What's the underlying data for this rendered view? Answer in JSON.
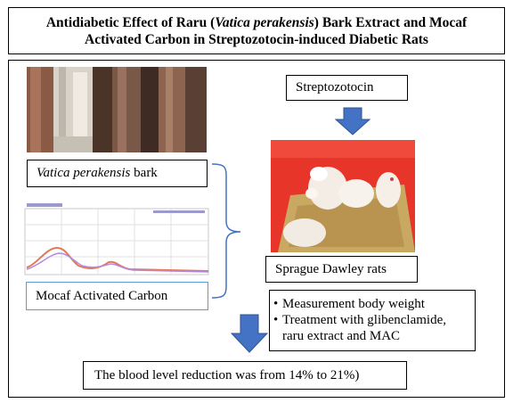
{
  "title": {
    "line1_prefix": "Antidiabetic Effect of Raru (",
    "line1_italic": "Vatica perakensis",
    "line1_suffix": ") Bark Extract and Mocaf",
    "line2": "Activated Carbon in Streptozotocin-induced Diabetic Rats"
  },
  "bark": {
    "italic": "Vatica perakensis",
    "suffix": " bark"
  },
  "mocaf_label": "Mocaf Activated Carbon",
  "streptozotocin_label": "Streptozotocin",
  "rats_label": "Sprague Dawley rats",
  "steps": [
    "Measurement body weight",
    "Treatment with glibenclamide, raru extract and MAC"
  ],
  "result": "The blood level reduction was from 14% to 21%)",
  "colors": {
    "arrow_fill": "#4472c4",
    "arrow_stroke": "#2f528f",
    "bracket": "#4472c4",
    "mocaf_border": "#5b9bd5"
  }
}
